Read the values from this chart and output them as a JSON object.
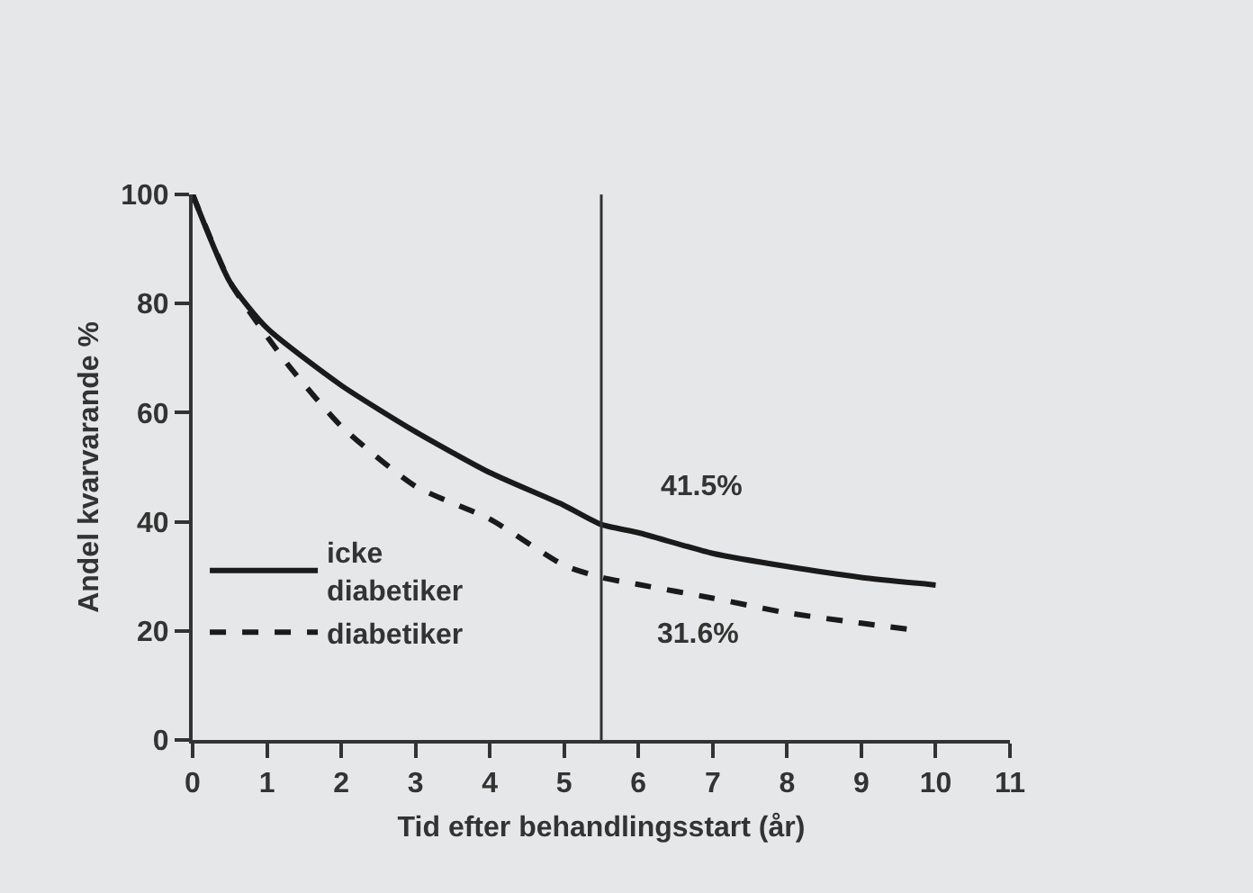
{
  "chart_data": {
    "type": "line",
    "xlabel": "Tid efter behandlingsstart (år)",
    "ylabel": "Andel kvarvarande %",
    "xlim": [
      0,
      11
    ],
    "xticks": [
      0,
      1,
      2,
      3,
      4,
      5,
      6,
      7,
      8,
      9,
      10,
      11
    ],
    "ylim": [
      0,
      100
    ],
    "yticks": [
      0,
      20,
      40,
      60,
      80,
      100
    ],
    "grid": false,
    "legend": "bottom left",
    "marker": "none",
    "series": [
      {
        "name": "icke diabetiker",
        "color": "#1a1a1a",
        "line_style": "solid",
        "x": [
          0,
          0.5,
          1,
          2,
          3,
          4,
          5,
          5.5,
          6,
          7,
          8,
          9,
          10
        ],
        "values": [
          100,
          84,
          75.5,
          65,
          56.5,
          49,
          43,
          39.5,
          38,
          34.2,
          31.8,
          29.8,
          28.4
        ]
      },
      {
        "name": "diabetiker",
        "color": "#1a1a1a",
        "line_style": "dashed",
        "x": [
          0,
          0.5,
          1,
          1.3,
          2,
          3,
          4,
          5,
          5.5,
          6,
          7,
          8,
          9,
          9.7
        ],
        "values": [
          100,
          84,
          74,
          68.5,
          57.5,
          46.5,
          40.5,
          32,
          29.8,
          28.5,
          26,
          23.3,
          21.4,
          20.2
        ]
      }
    ],
    "ref_lines": [
      {
        "axis": "x",
        "value": 5.5,
        "color": "#333333"
      }
    ],
    "annotations": [
      "41.5%",
      "31.6%"
    ]
  }
}
